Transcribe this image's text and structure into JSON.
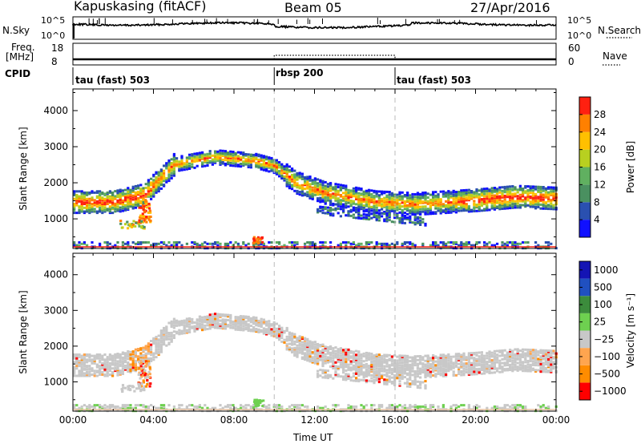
{
  "header": {
    "station": "Kapuskasing (fitACF)",
    "beam": "Beam 05",
    "date": "27/Apr/2016"
  },
  "sky_strip": {
    "left_label": "N.Sky",
    "right_label": "N.Search",
    "left_ticks": [
      "10^5",
      "10^0"
    ],
    "right_ticks": [
      "10^5",
      "10^0"
    ]
  },
  "freq_strip": {
    "left_label_line1": "Freq.",
    "left_label_line2": "[MHz]",
    "right_label": "Nave",
    "left_ticks": [
      "18",
      "8"
    ],
    "right_ticks": [
      "60",
      "0"
    ]
  },
  "cpid_strip": {
    "label": "CPID",
    "segments": [
      {
        "label": "tau (fast) 503",
        "start_h": 0,
        "end_h": 10
      },
      {
        "label": "rbsp 200",
        "start_h": 10,
        "end_h": 16
      },
      {
        "label": "tau (fast) 503",
        "start_h": 16,
        "end_h": 24
      }
    ]
  },
  "x_axis": {
    "label": "Time UT",
    "ticks": [
      "00:00",
      "04:00",
      "08:00",
      "12:00",
      "16:00",
      "20:00",
      "00:00"
    ],
    "range_h": [
      0,
      24
    ]
  },
  "colors": {
    "power": [
      "#1010ff",
      "#2a50b0",
      "#4a9060",
      "#60b060",
      "#b8d020",
      "#ffc000",
      "#ff8000",
      "#ff2010"
    ],
    "velocity": [
      "#ff0000",
      "#ff8c00",
      "#ffa54f",
      "#c8c8c8",
      "#6ed050",
      "#3c8c3c",
      "#2050c0",
      "#1414b4"
    ],
    "gray_scatter": "#c8c8c8"
  },
  "chart_data": [
    {
      "type": "heatmap",
      "title": "Power",
      "ylabel": "Slant Range [km]",
      "ylim": [
        180,
        4600
      ],
      "y_ticks": [
        1000,
        2000,
        3000,
        4000
      ],
      "colorbar": {
        "label": "Power [dB]",
        "ticks": [
          "4",
          "8",
          "12",
          "16",
          "20",
          "24",
          "28"
        ],
        "range": [
          0,
          32
        ]
      },
      "features": [
        {
          "name": "main_echo_band",
          "center_km": [
            [
              0,
              1500
            ],
            [
              2,
              1500
            ],
            [
              3.5,
              1700
            ],
            [
              5,
              2550
            ],
            [
              7,
              2750
            ],
            [
              9,
              2650
            ],
            [
              10,
              2500
            ],
            [
              11,
              2050
            ],
            [
              12.5,
              1750
            ],
            [
              14,
              1600
            ],
            [
              15,
              1500
            ],
            [
              17,
              1450
            ],
            [
              20,
              1550
            ],
            [
              22,
              1650
            ],
            [
              24,
              1600
            ]
          ]
        },
        {
          "name": "lower_echo_band",
          "center_km": [
            [
              12,
              1300
            ],
            [
              14,
              1050
            ],
            [
              16,
              1000
            ],
            [
              17,
              1100
            ]
          ]
        },
        {
          "name": "ground_scatter_floor",
          "range_km": [
            200,
            400
          ]
        }
      ]
    },
    {
      "type": "heatmap",
      "title": "Velocity",
      "ylabel": "Slant Range [km]",
      "ylim": [
        180,
        4600
      ],
      "y_ticks": [
        1000,
        2000,
        3000,
        4000
      ],
      "colorbar": {
        "label": "Velocity [m s⁻¹]",
        "ticks": [
          "1000",
          "500",
          "100",
          "25",
          "−25",
          "−100",
          "−500",
          "−1000"
        ]
      }
    }
  ]
}
